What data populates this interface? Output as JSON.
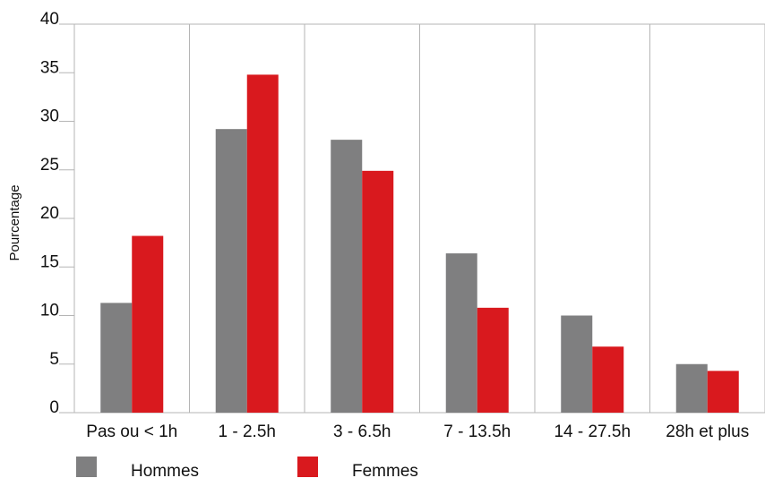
{
  "chart_data": {
    "type": "bar",
    "title": "",
    "xlabel": "",
    "ylabel": "Pourcentage",
    "ylim": [
      0,
      40
    ],
    "yticks": [
      0,
      5,
      10,
      15,
      20,
      25,
      30,
      35,
      40
    ],
    "grid": "vertical",
    "legend_position": "bottom-left",
    "categories": [
      "Pas ou < 1h",
      "1 - 2.5h",
      "3 - 6.5h",
      "7 - 13.5h",
      "14 - 27.5h",
      "28h et plus"
    ],
    "series": [
      {
        "name": "Hommes",
        "color": "#7f7f80",
        "values": [
          11.3,
          29.2,
          28.1,
          16.4,
          10.0,
          5.0
        ]
      },
      {
        "name": "Femmes",
        "color": "#d9191e",
        "values": [
          18.2,
          34.8,
          24.9,
          10.8,
          6.8,
          4.3
        ]
      }
    ]
  }
}
